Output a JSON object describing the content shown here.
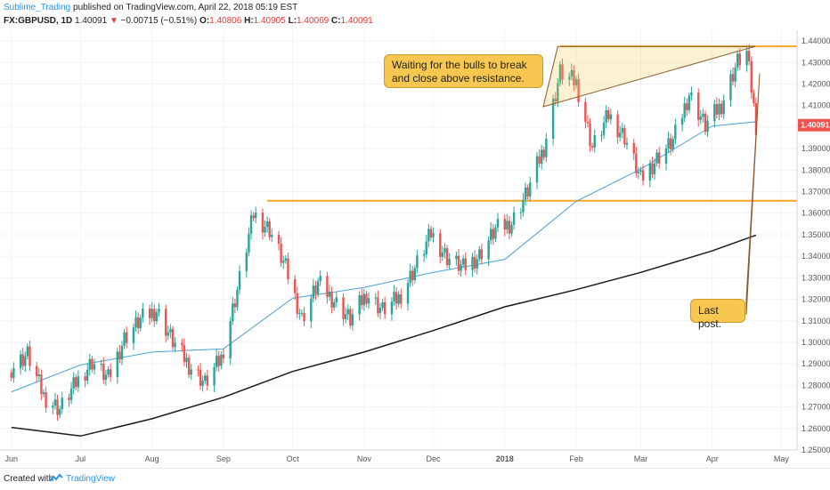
{
  "header": {
    "author": "Sublime_Trading",
    "published_text": "published on TradingView.com, April 22, 2018 05:19 EST",
    "symbol": "FX:GBPUSD, 1D",
    "last": "1.40091",
    "change": "−0.00715 (−0.51%)",
    "o_label": "O:",
    "o_value": "1.40806",
    "h_label": "H:",
    "h_value": "1.40905",
    "l_label": "L:",
    "l_value": "1.40069",
    "c_label": "C:",
    "c_value": "1.40091"
  },
  "footer": {
    "created_with": "Created with",
    "brand": "TradingView"
  },
  "colors": {
    "up": "#26a69a",
    "down": "#ef5350",
    "sma_fast": "#4a9fd4",
    "sma_slow": "#1a1a1a",
    "level": "#f5a623",
    "callout_bg": "#f7c74f",
    "price_tag": "#ef5350",
    "grid": "#f0f3fa"
  },
  "annotations": {
    "resistance_note": "Waiting for the bulls to break and close above resistance.",
    "last_post_note": "Last post."
  },
  "chart_data": {
    "type": "candlestick",
    "symbol": "FX:GBPUSD",
    "timeframe": "1D",
    "ylim": [
      1.25,
      1.445
    ],
    "y_ticks": [
      "1.44000",
      "1.43000",
      "1.42000",
      "1.41000",
      "1.40000",
      "1.39000",
      "1.38000",
      "1.37000",
      "1.36000",
      "1.35000",
      "1.34000",
      "1.33000",
      "1.32000",
      "1.31000",
      "1.30000",
      "1.29000",
      "1.28000",
      "1.27000",
      "1.26000",
      "1.25000"
    ],
    "x_ticks": [
      "Jun",
      "Jul",
      "Aug",
      "Sep",
      "Oct",
      "Nov",
      "Dec",
      "2018",
      "Feb",
      "Mar",
      "Apr",
      "May"
    ],
    "last_price_tag": "1.40091",
    "horizontal_levels": [
      1.4375,
      1.3658
    ],
    "close_path": [
      [
        "2017-06-01",
        1.288
      ],
      [
        "2017-06-08",
        1.2945
      ],
      [
        "2017-06-15",
        1.275
      ],
      [
        "2017-06-22",
        1.269
      ],
      [
        "2017-06-29",
        1.281
      ],
      [
        "2017-07-06",
        1.291
      ],
      [
        "2017-07-13",
        1.283
      ],
      [
        "2017-07-20",
        1.302
      ],
      [
        "2017-07-27",
        1.3105
      ],
      [
        "2017-08-03",
        1.315
      ],
      [
        "2017-08-10",
        1.3005
      ],
      [
        "2017-08-17",
        1.2895
      ],
      [
        "2017-08-24",
        1.281
      ],
      [
        "2017-08-31",
        1.2925
      ],
      [
        "2017-09-07",
        1.3245
      ],
      [
        "2017-09-14",
        1.3595
      ],
      [
        "2017-09-21",
        1.3525
      ],
      [
        "2017-09-28",
        1.3345
      ],
      [
        "2017-10-05",
        1.311
      ],
      [
        "2017-10-12",
        1.3275
      ],
      [
        "2017-10-19",
        1.3195
      ],
      [
        "2017-10-26",
        1.3105
      ],
      [
        "2017-11-02",
        1.3225
      ],
      [
        "2017-11-09",
        1.315
      ],
      [
        "2017-11-16",
        1.3205
      ],
      [
        "2017-11-23",
        1.3345
      ],
      [
        "2017-11-30",
        1.3505
      ],
      [
        "2017-12-07",
        1.3395
      ],
      [
        "2017-12-14",
        1.3345
      ],
      [
        "2017-12-21",
        1.3405
      ],
      [
        "2017-12-28",
        1.3525
      ],
      [
        "2018-01-04",
        1.3555
      ],
      [
        "2018-01-11",
        1.3705
      ],
      [
        "2018-01-18",
        1.3905
      ],
      [
        "2018-01-25",
        1.4255
      ],
      [
        "2018-02-01",
        1.4205
      ],
      [
        "2018-02-08",
        1.3905
      ],
      [
        "2018-02-15",
        1.4055
      ],
      [
        "2018-02-22",
        1.3955
      ],
      [
        "2018-03-01",
        1.3755
      ],
      [
        "2018-03-08",
        1.3855
      ],
      [
        "2018-03-15",
        1.3935
      ],
      [
        "2018-03-22",
        1.4155
      ],
      [
        "2018-03-29",
        1.4005
      ],
      [
        "2018-04-05",
        1.4105
      ],
      [
        "2018-04-12",
        1.4305
      ],
      [
        "2018-04-16",
        1.4345
      ],
      [
        "2018-04-20",
        1.40091
      ]
    ],
    "sma_fast": [
      [
        "2017-06-01",
        1.277
      ],
      [
        "2017-07-01",
        1.2895
      ],
      [
        "2017-08-01",
        1.2955
      ],
      [
        "2017-09-01",
        1.297
      ],
      [
        "2017-10-01",
        1.3205
      ],
      [
        "2017-11-01",
        1.3255
      ],
      [
        "2017-12-01",
        1.3325
      ],
      [
        "2018-01-01",
        1.3385
      ],
      [
        "2018-02-01",
        1.3655
      ],
      [
        "2018-03-01",
        1.3805
      ],
      [
        "2018-04-01",
        1.4005
      ],
      [
        "2018-04-20",
        1.4025
      ]
    ],
    "sma_slow": [
      [
        "2017-06-01",
        1.2605
      ],
      [
        "2017-07-01",
        1.2565
      ],
      [
        "2017-08-01",
        1.2645
      ],
      [
        "2017-09-01",
        1.2745
      ],
      [
        "2017-10-01",
        1.2865
      ],
      [
        "2017-11-01",
        1.2955
      ],
      [
        "2017-12-01",
        1.3055
      ],
      [
        "2018-01-01",
        1.3165
      ],
      [
        "2018-02-01",
        1.3245
      ],
      [
        "2018-03-01",
        1.3325
      ],
      [
        "2018-04-01",
        1.3425
      ],
      [
        "2018-04-20",
        1.3498
      ]
    ]
  }
}
